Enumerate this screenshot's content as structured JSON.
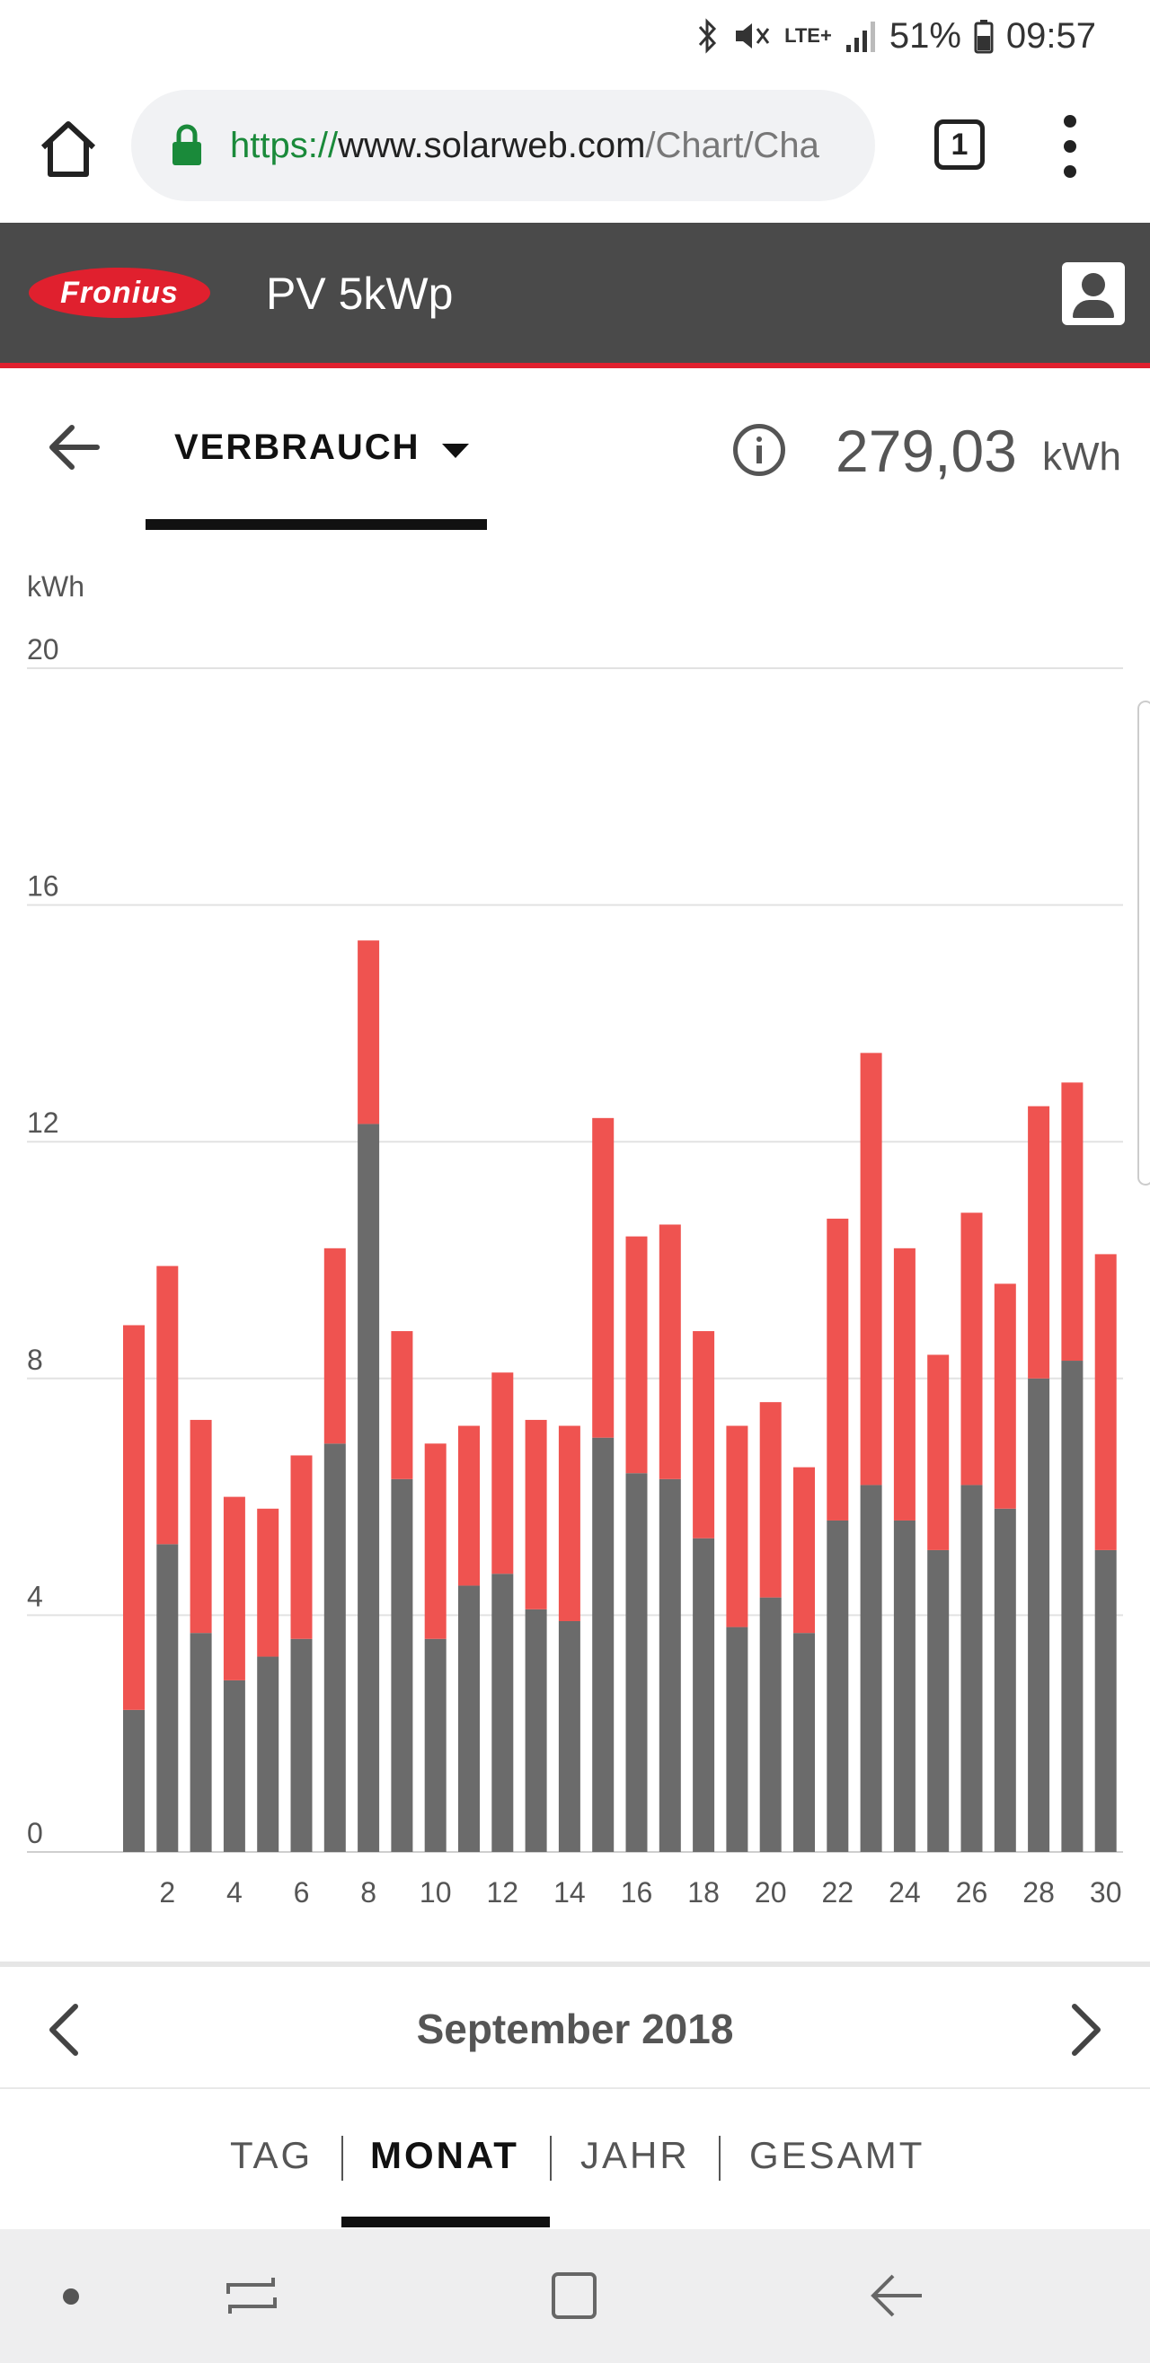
{
  "status_bar": {
    "network": "LTE+",
    "battery": "51%",
    "time": "09:57"
  },
  "browser": {
    "url_scheme": "https://",
    "url_host": "www.solarweb.com",
    "url_path": "/Chart/Cha",
    "tab_count": "1"
  },
  "header": {
    "logo_text": "Fronius",
    "title": "PV 5kWp"
  },
  "subheader": {
    "category_label": "VERBRAUCH",
    "total_value": "279,03",
    "total_unit": "kWh"
  },
  "chart_data": {
    "type": "bar",
    "stacked": true,
    "ylabel": "kWh",
    "ylim": [
      0,
      20
    ],
    "yticks": [
      0,
      4,
      8,
      12,
      16,
      20
    ],
    "xticks": [
      2,
      4,
      6,
      8,
      10,
      12,
      14,
      16,
      18,
      20,
      22,
      24,
      26,
      28,
      30
    ],
    "grid": true,
    "colors": {
      "dark": "#6b6b6b",
      "red": "#ef5350"
    },
    "categories": [
      1,
      2,
      3,
      4,
      5,
      6,
      7,
      8,
      9,
      10,
      11,
      12,
      13,
      14,
      15,
      16,
      17,
      18,
      19,
      20,
      21,
      22,
      23,
      24,
      25,
      26,
      27,
      28,
      29,
      30
    ],
    "series": [
      {
        "color": "#6b6b6b",
        "values": [
          2.4,
          5.2,
          3.7,
          2.9,
          3.3,
          3.6,
          6.9,
          12.3,
          6.3,
          3.6,
          4.5,
          4.7,
          4.1,
          3.9,
          7.0,
          6.4,
          6.3,
          5.3,
          3.8,
          4.3,
          3.7,
          5.6,
          6.2,
          5.6,
          5.1,
          6.2,
          5.8,
          8.0,
          8.3,
          5.1
        ]
      },
      {
        "color": "#ef5350",
        "values": [
          6.5,
          4.7,
          3.6,
          3.1,
          2.5,
          3.1,
          3.3,
          3.1,
          2.5,
          3.3,
          2.7,
          3.4,
          3.2,
          3.3,
          5.4,
          4.0,
          4.3,
          3.5,
          3.4,
          3.3,
          2.8,
          5.1,
          7.3,
          4.6,
          3.3,
          4.6,
          3.8,
          4.6,
          4.7,
          5.0
        ]
      }
    ]
  },
  "period_nav": {
    "label": "September 2018"
  },
  "period_tabs": {
    "tag": "TAG",
    "monat": "MONAT",
    "jahr": "JAHR",
    "gesamt": "GESAMT",
    "active": "MONAT"
  }
}
